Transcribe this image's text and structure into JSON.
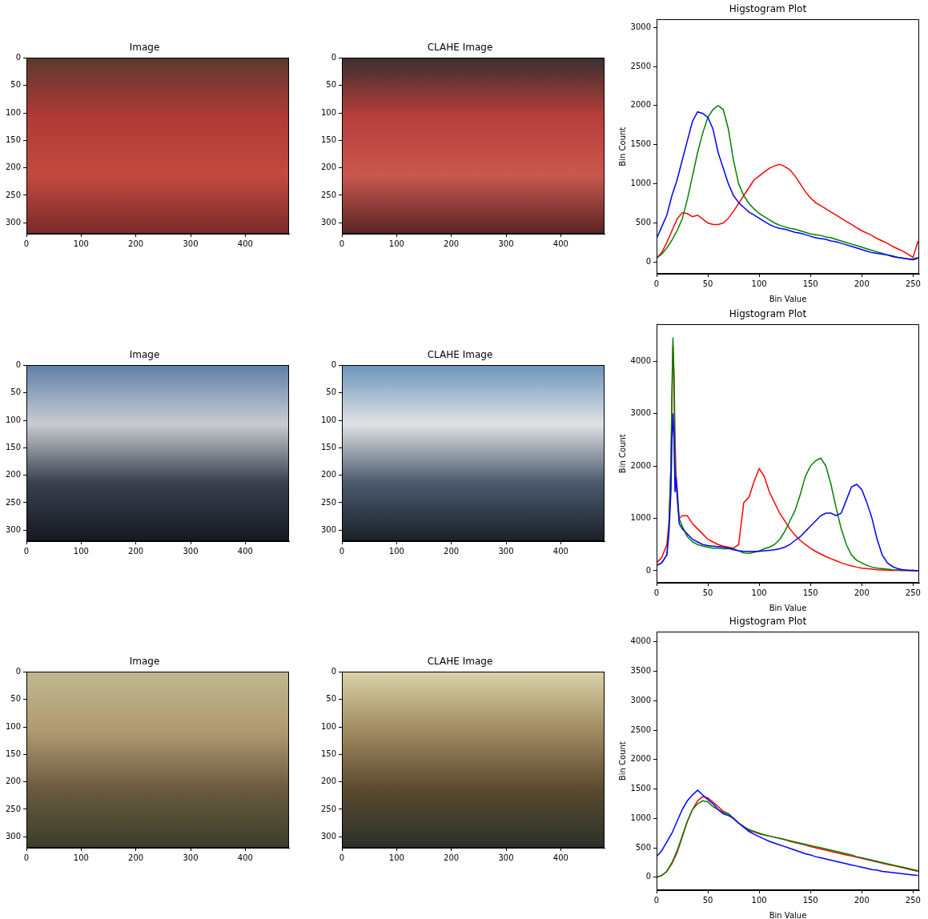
{
  "chart_data": [
    {
      "type": "image",
      "title": "Image",
      "xlim": [
        0,
        480
      ],
      "ylim": [
        320,
        0
      ],
      "xticks": [
        0,
        100,
        200,
        300,
        400
      ],
      "yticks": [
        0,
        50,
        100,
        150,
        200,
        250,
        300
      ]
    },
    {
      "type": "image",
      "title": "CLAHE Image",
      "xlim": [
        0,
        480
      ],
      "ylim": [
        320,
        0
      ],
      "xticks": [
        0,
        100,
        200,
        300,
        400
      ],
      "yticks": [
        0,
        50,
        100,
        150,
        200,
        250,
        300
      ]
    },
    {
      "type": "line",
      "title": "Higstogram Plot",
      "xlabel": "Bin Value",
      "ylabel": "Bin Count",
      "grid": false,
      "xlim": [
        0,
        256
      ],
      "ylim": [
        -150,
        3100
      ],
      "xticks": [
        0,
        50,
        100,
        150,
        200,
        250
      ],
      "yticks": [
        0,
        500,
        1000,
        1500,
        2000,
        2500,
        3000
      ],
      "x": [
        0,
        5,
        10,
        15,
        20,
        25,
        30,
        35,
        40,
        45,
        50,
        55,
        60,
        65,
        70,
        75,
        80,
        85,
        90,
        95,
        100,
        105,
        110,
        115,
        120,
        125,
        130,
        135,
        140,
        145,
        150,
        155,
        160,
        165,
        170,
        175,
        180,
        185,
        190,
        195,
        200,
        205,
        210,
        215,
        220,
        225,
        230,
        235,
        240,
        245,
        250,
        255
      ],
      "series": [
        {
          "color": "#0000ff",
          "values": [
            300,
            450,
            600,
            850,
            1050,
            1300,
            1550,
            1800,
            1920,
            1900,
            1850,
            1700,
            1400,
            1200,
            1000,
            850,
            760,
            700,
            640,
            600,
            560,
            520,
            480,
            450,
            430,
            420,
            400,
            380,
            370,
            350,
            330,
            310,
            300,
            290,
            270,
            260,
            240,
            220,
            200,
            180,
            160,
            140,
            120,
            110,
            100,
            90,
            70,
            60,
            50,
            40,
            30,
            50
          ]
        },
        {
          "color": "#008000",
          "values": [
            50,
            100,
            180,
            280,
            400,
            550,
            800,
            1100,
            1400,
            1650,
            1850,
            1950,
            2000,
            1950,
            1700,
            1300,
            1000,
            850,
            750,
            680,
            620,
            580,
            540,
            500,
            470,
            450,
            430,
            420,
            400,
            380,
            360,
            350,
            340,
            320,
            310,
            290,
            270,
            250,
            230,
            210,
            190,
            170,
            150,
            130,
            110,
            90,
            80,
            60,
            50,
            40,
            40,
            60
          ]
        },
        {
          "color": "#ff0000",
          "values": [
            50,
            120,
            250,
            400,
            550,
            630,
            620,
            580,
            600,
            550,
            500,
            480,
            480,
            500,
            560,
            650,
            750,
            850,
            950,
            1050,
            1100,
            1150,
            1200,
            1230,
            1250,
            1220,
            1180,
            1100,
            1000,
            900,
            820,
            760,
            720,
            680,
            640,
            600,
            560,
            520,
            480,
            440,
            400,
            370,
            340,
            300,
            270,
            240,
            200,
            170,
            140,
            100,
            60,
            270
          ]
        }
      ]
    },
    {
      "type": "image",
      "title": "Image",
      "xlim": [
        0,
        480
      ],
      "ylim": [
        320,
        0
      ],
      "xticks": [
        0,
        100,
        200,
        300,
        400
      ],
      "yticks": [
        0,
        50,
        100,
        150,
        200,
        250,
        300
      ]
    },
    {
      "type": "image",
      "title": "CLAHE Image",
      "xlim": [
        0,
        480
      ],
      "ylim": [
        320,
        0
      ],
      "xticks": [
        0,
        100,
        200,
        300,
        400
      ],
      "yticks": [
        0,
        50,
        100,
        150,
        200,
        250,
        300
      ]
    },
    {
      "type": "line",
      "title": "Higstogram Plot",
      "xlabel": "Bin Value",
      "ylabel": "Bin Count",
      "grid": false,
      "xlim": [
        0,
        256
      ],
      "ylim": [
        -230,
        4700
      ],
      "xticks": [
        0,
        50,
        100,
        150,
        200,
        250
      ],
      "yticks": [
        0,
        1000,
        2000,
        3000,
        4000
      ],
      "x": [
        0,
        5,
        10,
        12,
        14,
        15,
        16,
        17,
        18,
        19,
        20,
        22,
        25,
        30,
        35,
        40,
        45,
        50,
        55,
        60,
        65,
        70,
        75,
        80,
        85,
        90,
        95,
        100,
        105,
        110,
        115,
        120,
        125,
        130,
        135,
        140,
        145,
        150,
        155,
        160,
        165,
        170,
        175,
        180,
        185,
        190,
        195,
        200,
        205,
        210,
        215,
        220,
        225,
        230,
        235,
        240,
        245,
        250,
        255
      ],
      "series": [
        {
          "color": "#0000ff",
          "values": [
            100,
            150,
            300,
            700,
            1500,
            2500,
            3000,
            2500,
            1500,
            1800,
            1500,
            900,
            800,
            700,
            600,
            550,
            500,
            480,
            470,
            460,
            450,
            430,
            400,
            380,
            370,
            370,
            370,
            370,
            380,
            390,
            400,
            420,
            450,
            500,
            580,
            650,
            750,
            850,
            950,
            1050,
            1100,
            1100,
            1050,
            1100,
            1350,
            1600,
            1650,
            1550,
            1300,
            1000,
            600,
            300,
            150,
            80,
            40,
            20,
            10,
            5,
            0
          ]
        },
        {
          "color": "#008000",
          "values": [
            100,
            150,
            300,
            800,
            2000,
            3500,
            4450,
            3500,
            2000,
            1700,
            1600,
            1000,
            850,
            650,
            550,
            500,
            470,
            450,
            430,
            430,
            420,
            420,
            420,
            380,
            340,
            330,
            350,
            380,
            420,
            450,
            500,
            600,
            750,
            950,
            1150,
            1450,
            1800,
            2000,
            2100,
            2150,
            2000,
            1650,
            1200,
            800,
            500,
            300,
            200,
            150,
            100,
            70,
            50,
            40,
            30,
            20,
            15,
            10,
            5,
            5,
            0
          ]
        },
        {
          "color": "#ff0000",
          "values": [
            150,
            250,
            500,
            900,
            2000,
            3200,
            4300,
            3800,
            2500,
            1800,
            1400,
            1000,
            1050,
            1050,
            900,
            800,
            700,
            600,
            550,
            500,
            470,
            450,
            430,
            500,
            1300,
            1400,
            1700,
            1950,
            1800,
            1500,
            1300,
            1100,
            950,
            800,
            680,
            580,
            500,
            430,
            370,
            320,
            270,
            230,
            190,
            150,
            120,
            90,
            70,
            50,
            40,
            30,
            20,
            15,
            10,
            8,
            5,
            3,
            2,
            1,
            0
          ]
        }
      ]
    },
    {
      "type": "image",
      "title": "Image",
      "xlim": [
        0,
        480
      ],
      "ylim": [
        320,
        0
      ],
      "xticks": [
        0,
        100,
        200,
        300,
        400
      ],
      "yticks": [
        0,
        50,
        100,
        150,
        200,
        250,
        300
      ]
    },
    {
      "type": "image",
      "title": "CLAHE Image",
      "xlim": [
        0,
        480
      ],
      "ylim": [
        320,
        0
      ],
      "xticks": [
        0,
        100,
        200,
        300,
        400
      ],
      "yticks": [
        0,
        50,
        100,
        150,
        200,
        250,
        300
      ]
    },
    {
      "type": "line",
      "title": "Higstogram Plot",
      "xlabel": "Bin Value",
      "ylabel": "Bin Count",
      "grid": false,
      "xlim": [
        0,
        256
      ],
      "ylim": [
        -220,
        4170
      ],
      "xticks": [
        0,
        50,
        100,
        150,
        200,
        250
      ],
      "yticks": [
        0,
        500,
        1000,
        1500,
        2000,
        2500,
        3000,
        3500,
        4000
      ],
      "x": [
        0,
        5,
        10,
        15,
        20,
        25,
        30,
        35,
        40,
        45,
        50,
        55,
        60,
        65,
        70,
        75,
        80,
        85,
        90,
        95,
        100,
        105,
        110,
        115,
        120,
        125,
        130,
        135,
        140,
        145,
        150,
        155,
        160,
        165,
        170,
        175,
        180,
        185,
        190,
        195,
        200,
        205,
        210,
        215,
        220,
        225,
        230,
        235,
        240,
        245,
        250,
        255
      ],
      "series": [
        {
          "color": "#0000ff",
          "values": [
            350,
            450,
            600,
            750,
            950,
            1150,
            1300,
            1400,
            1480,
            1400,
            1320,
            1250,
            1150,
            1080,
            1050,
            1000,
            920,
            850,
            780,
            730,
            690,
            650,
            610,
            580,
            550,
            520,
            490,
            460,
            430,
            400,
            380,
            350,
            330,
            310,
            290,
            270,
            250,
            230,
            210,
            190,
            170,
            150,
            130,
            120,
            100,
            90,
            80,
            70,
            60,
            50,
            40,
            30
          ]
        },
        {
          "color": "#008000",
          "values": [
            0,
            30,
            100,
            250,
            450,
            700,
            950,
            1150,
            1250,
            1300,
            1280,
            1200,
            1150,
            1100,
            1080,
            1000,
            920,
            860,
            810,
            780,
            750,
            720,
            700,
            680,
            660,
            640,
            620,
            600,
            580,
            560,
            540,
            520,
            500,
            480,
            460,
            440,
            420,
            400,
            380,
            350,
            330,
            310,
            290,
            270,
            250,
            230,
            210,
            190,
            170,
            150,
            130,
            110
          ]
        },
        {
          "color": "#ff0000",
          "values": [
            0,
            30,
            100,
            230,
            420,
            680,
            950,
            1150,
            1300,
            1370,
            1350,
            1280,
            1200,
            1120,
            1080,
            1000,
            920,
            860,
            800,
            770,
            740,
            720,
            700,
            680,
            660,
            640,
            610,
            590,
            570,
            550,
            520,
            500,
            480,
            460,
            440,
            420,
            400,
            380,
            360,
            340,
            320,
            300,
            280,
            260,
            240,
            220,
            200,
            180,
            160,
            140,
            120,
            100
          ]
        }
      ]
    }
  ]
}
